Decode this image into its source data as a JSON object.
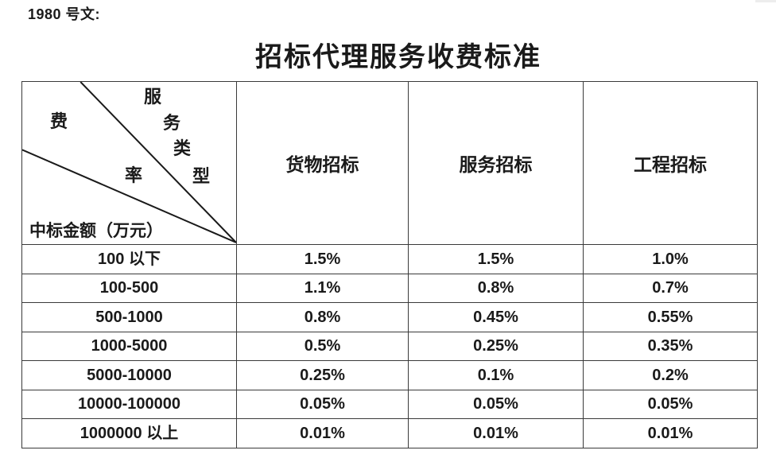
{
  "doc": {
    "ref_label": "1980 号文:",
    "title": "招标代理服务收费标准"
  },
  "colors": {
    "text": "#1a1a1a",
    "table_border": "#3a3a3a",
    "background": "#ffffff"
  },
  "table": {
    "corner": {
      "type_axis_chars": [
        "服",
        "务",
        "类",
        "型"
      ],
      "rate_axis_chars": [
        "费",
        "率"
      ],
      "amount_axis_label": "中标金额（万元）"
    },
    "columns": [
      "货物招标",
      "服务招标",
      "工程招标"
    ],
    "rows": [
      {
        "amount_range": "100 以下",
        "rates": [
          "1.5%",
          "1.5%",
          "1.0%"
        ]
      },
      {
        "amount_range": "100-500",
        "rates": [
          "1.1%",
          "0.8%",
          "0.7%"
        ]
      },
      {
        "amount_range": "500-1000",
        "rates": [
          "0.8%",
          "0.45%",
          "0.55%"
        ]
      },
      {
        "amount_range": "1000-5000",
        "rates": [
          "0.5%",
          "0.25%",
          "0.35%"
        ]
      },
      {
        "amount_range": "5000-10000",
        "rates": [
          "0.25%",
          "0.1%",
          "0.2%"
        ]
      },
      {
        "amount_range": "10000-100000",
        "rates": [
          "0.05%",
          "0.05%",
          "0.05%"
        ]
      },
      {
        "amount_range": "1000000 以上",
        "rates": [
          "0.01%",
          "0.01%",
          "0.01%"
        ]
      }
    ]
  }
}
